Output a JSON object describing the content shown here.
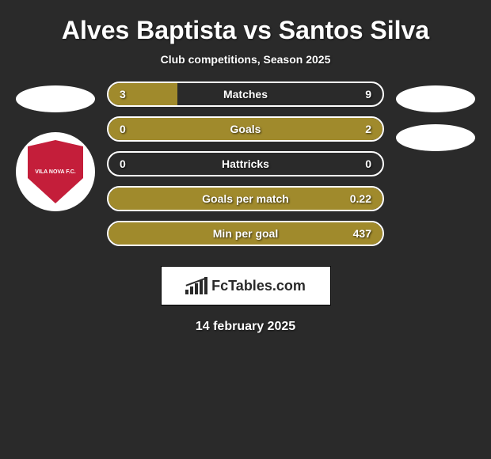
{
  "title": "Alves Baptista vs Santos Silva",
  "subtitle": "Club competitions, Season 2025",
  "left_badge": {
    "name": "VILA NOVA F.C.",
    "shield_color": "#c41e3a",
    "circle_color": "#ffffff"
  },
  "stats": {
    "fill_color": "#a08a2c",
    "border_color": "#ffffff",
    "background_color": "#2a2a2a",
    "rows": [
      {
        "label": "Matches",
        "left_value": "3",
        "right_value": "9",
        "left_fill_pct": 25,
        "right_fill_pct": 0
      },
      {
        "label": "Goals",
        "left_value": "0",
        "right_value": "2",
        "left_fill_pct": 0,
        "right_fill_pct": 100
      },
      {
        "label": "Hattricks",
        "left_value": "0",
        "right_value": "0",
        "left_fill_pct": 0,
        "right_fill_pct": 0
      },
      {
        "label": "Goals per match",
        "left_value": "",
        "right_value": "0.22",
        "left_fill_pct": 0,
        "right_fill_pct": 100
      },
      {
        "label": "Min per goal",
        "left_value": "",
        "right_value": "437",
        "left_fill_pct": 0,
        "right_fill_pct": 100
      }
    ]
  },
  "logo": {
    "text": "FcTables.com"
  },
  "date": "14 february 2025",
  "colors": {
    "bg": "#2a2a2a",
    "text": "#ffffff",
    "ellipse": "#ffffff"
  }
}
